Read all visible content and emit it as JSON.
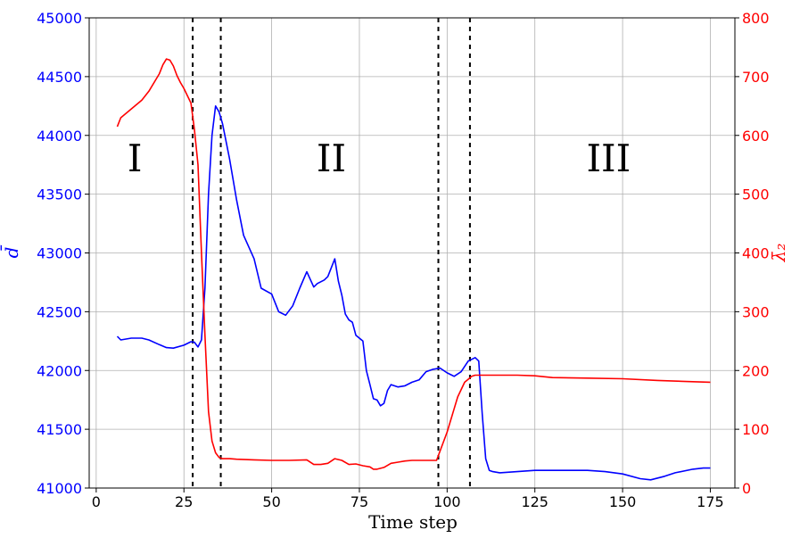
{
  "chart_data": {
    "type": "line",
    "xlabel": "Time step",
    "ylabel_left": "d̄",
    "ylabel_right": "λ̄₂",
    "xlim": [
      -2,
      182
    ],
    "ylim_left": [
      41000,
      45000
    ],
    "ylim_right": [
      0,
      800
    ],
    "xticks": [
      0,
      25,
      50,
      75,
      100,
      125,
      150,
      175
    ],
    "yticks_left": [
      41000,
      41500,
      42000,
      42500,
      43000,
      43500,
      44000,
      44500,
      45000
    ],
    "yticks_right": [
      0,
      100,
      200,
      300,
      400,
      500,
      600,
      700,
      800
    ],
    "grid": true,
    "vlines": [
      27.5,
      35.5,
      97.5,
      106.5
    ],
    "regions": [
      {
        "label": "I",
        "x": 11,
        "y_left": 43800
      },
      {
        "label": "II",
        "x": 67,
        "y_left": 43800
      },
      {
        "label": "III",
        "x": 146,
        "y_left": 43800
      }
    ],
    "colors": {
      "d": "#0000ff",
      "lambda": "#ff0000",
      "vline": "#000000"
    },
    "series": [
      {
        "axis": "left",
        "x": [
          6,
          7,
          10,
          13,
          15,
          18,
          20,
          22,
          25,
          27,
          28,
          29,
          30,
          31,
          32,
          33,
          34,
          35,
          36,
          38,
          40,
          42,
          45,
          47,
          50,
          52,
          54,
          56,
          58,
          60,
          62,
          63,
          65,
          66,
          68,
          69,
          70,
          71,
          72,
          73,
          74,
          76,
          77,
          78,
          79,
          80,
          81,
          82,
          83,
          84,
          86,
          88,
          90,
          92,
          94,
          96,
          98,
          100,
          102,
          104,
          106,
          108,
          109,
          110,
          111,
          112,
          113,
          115,
          120,
          125,
          130,
          135,
          140,
          145,
          150,
          155,
          158,
          162,
          165,
          170,
          173,
          175
        ],
        "y": [
          42290,
          42260,
          42275,
          42275,
          42260,
          42220,
          42195,
          42190,
          42215,
          42245,
          42240,
          42200,
          42260,
          42700,
          43500,
          44000,
          44250,
          44200,
          44100,
          43800,
          43450,
          43150,
          42950,
          42700,
          42650,
          42500,
          42470,
          42550,
          42700,
          42840,
          42710,
          42740,
          42770,
          42800,
          42950,
          42760,
          42640,
          42480,
          42430,
          42410,
          42300,
          42250,
          42000,
          41880,
          41760,
          41750,
          41700,
          41720,
          41830,
          41880,
          41860,
          41870,
          41900,
          41920,
          41990,
          42010,
          42020,
          41980,
          41950,
          41990,
          42080,
          42110,
          42080,
          41630,
          41250,
          41150,
          41140,
          41130,
          41140,
          41150,
          41150,
          41150,
          41150,
          41140,
          41120,
          41080,
          41070,
          41100,
          41130,
          41160,
          41170,
          41170
        ]
      },
      {
        "axis": "right",
        "x": [
          6,
          7,
          10,
          13,
          15,
          18,
          19,
          20,
          21,
          22,
          23,
          24,
          25,
          27,
          28,
          29,
          30,
          31,
          32,
          33,
          34,
          35,
          36,
          38,
          40,
          45,
          50,
          55,
          60,
          62,
          64,
          66,
          67,
          68,
          70,
          72,
          74,
          76,
          78,
          79,
          80,
          82,
          84,
          86,
          88,
          90,
          92,
          95,
          97,
          100,
          103,
          105,
          106,
          107,
          108,
          110,
          115,
          120,
          125,
          130,
          140,
          150,
          160,
          170,
          175
        ],
        "y": [
          615,
          630,
          645,
          660,
          675,
          705,
          720,
          730,
          728,
          718,
          702,
          690,
          680,
          655,
          610,
          550,
          400,
          260,
          130,
          80,
          60,
          52,
          50,
          50,
          49,
          48,
          47,
          47,
          48,
          40,
          40,
          42,
          46,
          50,
          47,
          40,
          41,
          38,
          36,
          32,
          32,
          35,
          42,
          44,
          46,
          47,
          47,
          47,
          47,
          95,
          155,
          180,
          185,
          190,
          192,
          192,
          192,
          192,
          191,
          188,
          187,
          186,
          183,
          181,
          180
        ]
      }
    ]
  }
}
